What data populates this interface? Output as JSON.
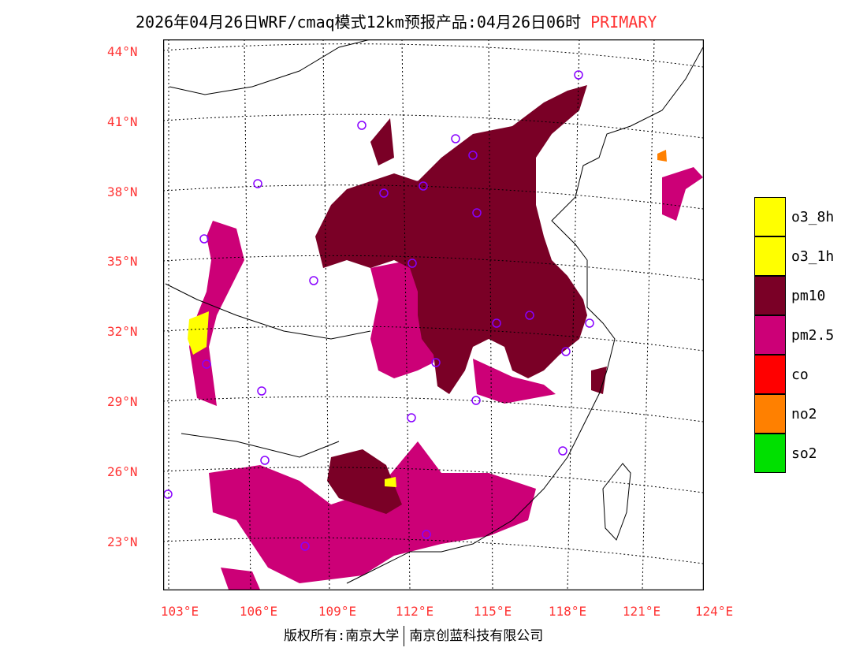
{
  "title": {
    "text": "2026年04月26日WRF/cmaq模式12km预报产品:04月26日06时",
    "mode": "PRIMARY"
  },
  "lat_labels": [
    "44°N",
    "41°N",
    "38°N",
    "35°N",
    "32°N",
    "29°N",
    "26°N",
    "23°N"
  ],
  "lon_labels": [
    "103°E",
    "106°E",
    "109°E",
    "112°E",
    "115°E",
    "118°E",
    "121°E",
    "124°E"
  ],
  "legend": [
    {
      "label": "o3_8h",
      "color": "#ffff00"
    },
    {
      "label": "o3_1h",
      "color": "#ffff00"
    },
    {
      "label": "pm10",
      "color": "#7a0026"
    },
    {
      "label": "pm2.5",
      "color": "#cc0077"
    },
    {
      "label": "co",
      "color": "#ff0000"
    },
    {
      "label": "no2",
      "color": "#ff8000"
    },
    {
      "label": "so2",
      "color": "#00e000"
    }
  ],
  "footer": {
    "left": "版权所有:南京大学",
    "right": "南京创蓝科技有限公司"
  }
}
